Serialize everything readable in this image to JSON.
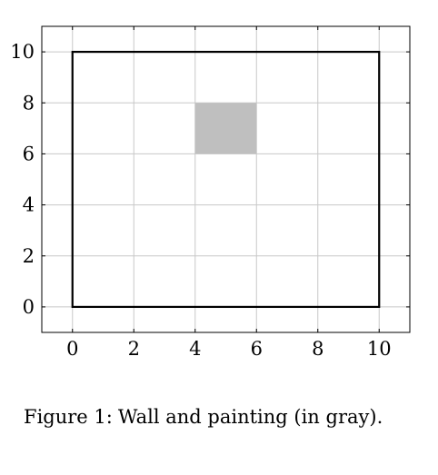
{
  "chart_data": {
    "type": "area",
    "xlim": [
      -1,
      11
    ],
    "ylim": [
      -1,
      11
    ],
    "xticks": [
      0,
      2,
      4,
      6,
      8,
      10
    ],
    "yticks": [
      0,
      2,
      4,
      6,
      8,
      10
    ],
    "grid": true,
    "shapes": [
      {
        "name": "wall",
        "kind": "rectangle-outline",
        "x": [
          0,
          10
        ],
        "y": [
          0,
          10
        ],
        "color": "#000000"
      },
      {
        "name": "painting",
        "kind": "rectangle-filled",
        "x": [
          4,
          6
        ],
        "y": [
          6,
          8
        ],
        "color": "#bfbfbf"
      }
    ]
  },
  "caption": {
    "number": "Figure 1:",
    "text": "Wall and painting (in gray)."
  },
  "colors": {
    "grid": "#c8c8c8",
    "axis": "#000000",
    "painting": "#bfbfbf"
  }
}
